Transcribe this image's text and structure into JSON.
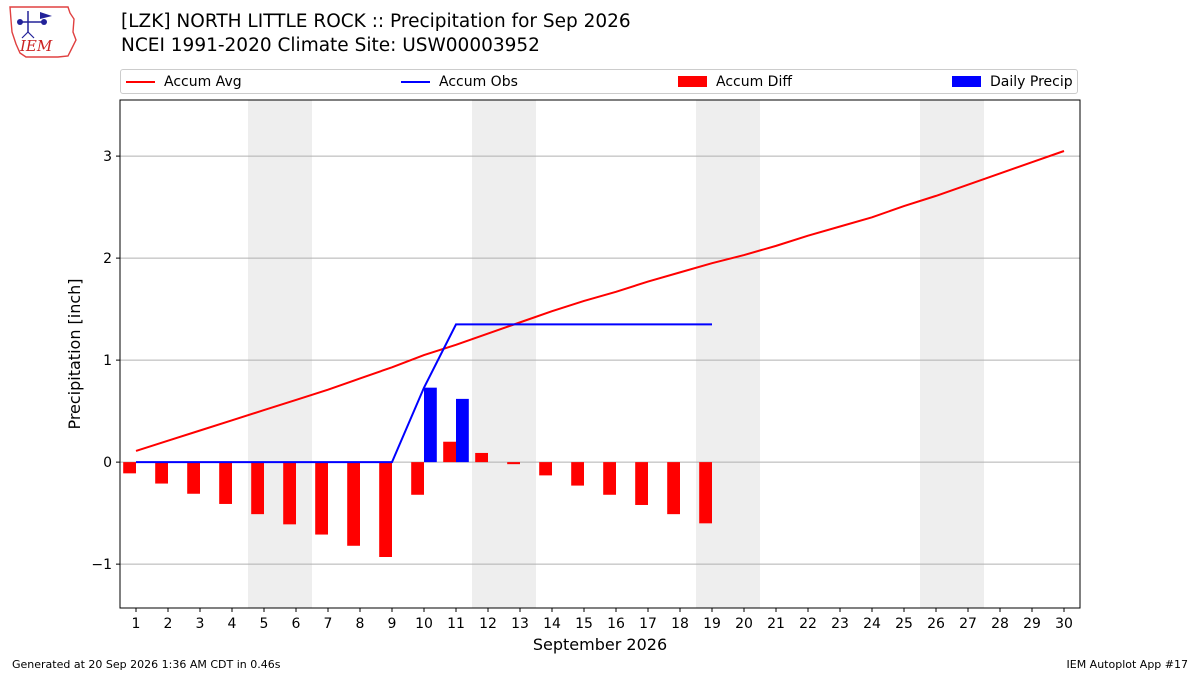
{
  "header": {
    "title_line1": "[LZK] NORTH LITTLE ROCK :: Precipitation for Sep 2026",
    "title_line2": "NCEI 1991-2020 Climate Site: USW00003952"
  },
  "logo": {
    "text": "IEM"
  },
  "legend": {
    "placement": "top, above plot",
    "items": [
      {
        "label": "Accum Avg",
        "kind": "line",
        "color": "#ff0000"
      },
      {
        "label": "Accum Obs",
        "kind": "line",
        "color": "#0000ff"
      },
      {
        "label": "Accum Diff",
        "kind": "bar",
        "color": "#ff0000"
      },
      {
        "label": "Daily Precip",
        "kind": "bar",
        "color": "#0000ff"
      }
    ]
  },
  "footer": {
    "left": "Generated at 20 Sep 2026 1:36 AM CDT in 0.46s",
    "right": "IEM Autoplot App #17"
  },
  "chart_data": {
    "type": "bar",
    "title": "[LZK] NORTH LITTLE ROCK :: Precipitation for Sep 2026",
    "subtitle": "NCEI 1991-2020 Climate Site: USW00003952",
    "xlabel": "September 2026",
    "ylabel": "Precipitation [inch]",
    "xlim": [
      0.5,
      30.5
    ],
    "ylim": [
      -1.43,
      3.55
    ],
    "grid": "horizontal",
    "days": [
      1,
      2,
      3,
      4,
      5,
      6,
      7,
      8,
      9,
      10,
      11,
      12,
      13,
      14,
      15,
      16,
      17,
      18,
      19,
      20,
      21,
      22,
      23,
      24,
      25,
      26,
      27,
      28,
      29,
      30
    ],
    "x_ticks": [
      "1",
      "2",
      "3",
      "4",
      "5",
      "6",
      "7",
      "8",
      "9",
      "10",
      "11",
      "12",
      "13",
      "14",
      "15",
      "16",
      "17",
      "18",
      "19",
      "20",
      "21",
      "22",
      "23",
      "24",
      "25",
      "26",
      "27",
      "28",
      "29",
      "30"
    ],
    "y_ticks": [
      -1,
      0,
      1,
      2,
      3
    ],
    "y_tick_labels": [
      "−1",
      "0",
      "1",
      "2",
      "3"
    ],
    "weekend_shading": [
      [
        5,
        6
      ],
      [
        12,
        13
      ],
      [
        19,
        20
      ],
      [
        26,
        27
      ]
    ],
    "weekend_color": "#eeeeee",
    "series": [
      {
        "name": "Accum Avg",
        "kind": "line",
        "color": "#ff0000",
        "values": [
          0.11,
          0.21,
          0.31,
          0.41,
          0.51,
          0.61,
          0.71,
          0.82,
          0.93,
          1.05,
          1.15,
          1.26,
          1.37,
          1.48,
          1.58,
          1.67,
          1.77,
          1.86,
          1.95,
          2.03,
          2.12,
          2.22,
          2.31,
          2.4,
          2.51,
          2.61,
          2.72,
          2.83,
          2.94,
          3.05
        ]
      },
      {
        "name": "Accum Obs",
        "kind": "line",
        "color": "#0000ff",
        "values": [
          0,
          0,
          0,
          0,
          0,
          0,
          0,
          0,
          0,
          0.73,
          1.35,
          1.35,
          1.35,
          1.35,
          1.35,
          1.35,
          1.35,
          1.35,
          1.35
        ]
      },
      {
        "name": "Accum Diff",
        "kind": "bar",
        "color": "#ff0000",
        "values": [
          -0.11,
          -0.21,
          -0.31,
          -0.41,
          -0.51,
          -0.61,
          -0.71,
          -0.82,
          -0.93,
          -0.32,
          0.2,
          0.09,
          -0.02,
          -0.13,
          -0.23,
          -0.32,
          -0.42,
          -0.51,
          -0.6
        ]
      },
      {
        "name": "Daily Precip",
        "kind": "bar",
        "color": "#0000ff",
        "values": [
          0,
          0,
          0,
          0,
          0,
          0,
          0,
          0,
          0,
          0.73,
          0.62,
          0,
          0,
          0,
          0,
          0,
          0,
          0,
          0
        ]
      }
    ]
  }
}
